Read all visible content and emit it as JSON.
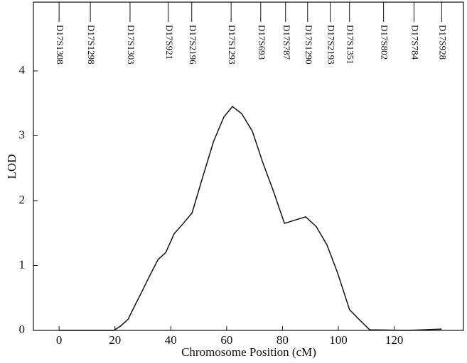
{
  "chart_data": {
    "type": "line",
    "x_label": "Chromosome Position (cM)",
    "y_label": "LOD",
    "x": [
      0,
      19.6,
      22.1,
      24.7,
      27.2,
      29.8,
      32.3,
      35.4,
      38.2,
      41.2,
      44.3,
      47.6,
      51.4,
      55.3,
      59.0,
      62.1,
      65.4,
      69.2,
      73.0,
      76.8,
      80.7,
      84.5,
      88.3,
      92.1,
      95.9,
      99.7,
      104,
      107.4,
      111.2,
      125,
      137
    ],
    "series": [
      {
        "color": "#111111",
        "values": [
          0,
          0,
          0.07,
          0.17,
          0.39,
          0.61,
          0.83,
          1.09,
          1.2,
          1.49,
          1.64,
          1.81,
          2.36,
          2.91,
          3.29,
          3.45,
          3.34,
          3.07,
          2.58,
          2.14,
          1.65,
          1.7,
          1.75,
          1.6,
          1.32,
          0.89,
          0.32,
          0.17,
          0.01,
          0,
          0.02
        ]
      }
    ],
    "markers": {
      "names": [
        "D17S1308",
        "D17S1298",
        "D17S1303",
        "D17S921",
        "D17S2196",
        "D17S1293",
        "D17S693",
        "D17S787",
        "D17S1290",
        "D17S2193",
        "D17S1351",
        "D17S802",
        "D17S784",
        "D17S928"
      ],
      "positions": [
        0,
        11.2,
        25.4,
        39.1,
        47.5,
        61.6,
        72.2,
        81.1,
        89,
        97.1,
        104,
        116.2,
        127.1,
        137
      ]
    },
    "xlim": [
      -9.2,
      144.8
    ],
    "ylim": [
      0,
      5.06
    ],
    "xticks": [
      0,
      20,
      40,
      60,
      80,
      100,
      120
    ],
    "yticks": [
      0,
      1,
      2,
      3,
      4
    ]
  }
}
